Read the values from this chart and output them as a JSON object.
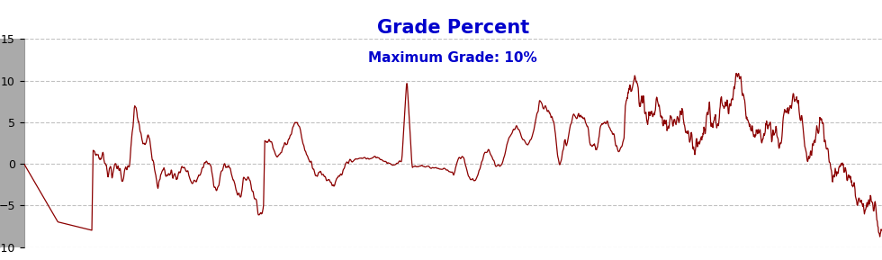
{
  "title": "Grade Percent",
  "subtitle": "Maximum Grade: 10%",
  "title_color": "#0000CC",
  "subtitle_color": "#0000CC",
  "title_fontsize": 15,
  "subtitle_fontsize": 11,
  "line_color": "#8B0000",
  "line_width": 0.9,
  "ylim": [
    -10,
    15
  ],
  "yticks": [
    -10,
    -5,
    0,
    5,
    10,
    15
  ],
  "background_color": "#FFFFFF",
  "left_panel_color": "#AAAAAA",
  "grid_color": "#BBBBBB",
  "grid_style": "--",
  "grid_alpha": 0.9
}
